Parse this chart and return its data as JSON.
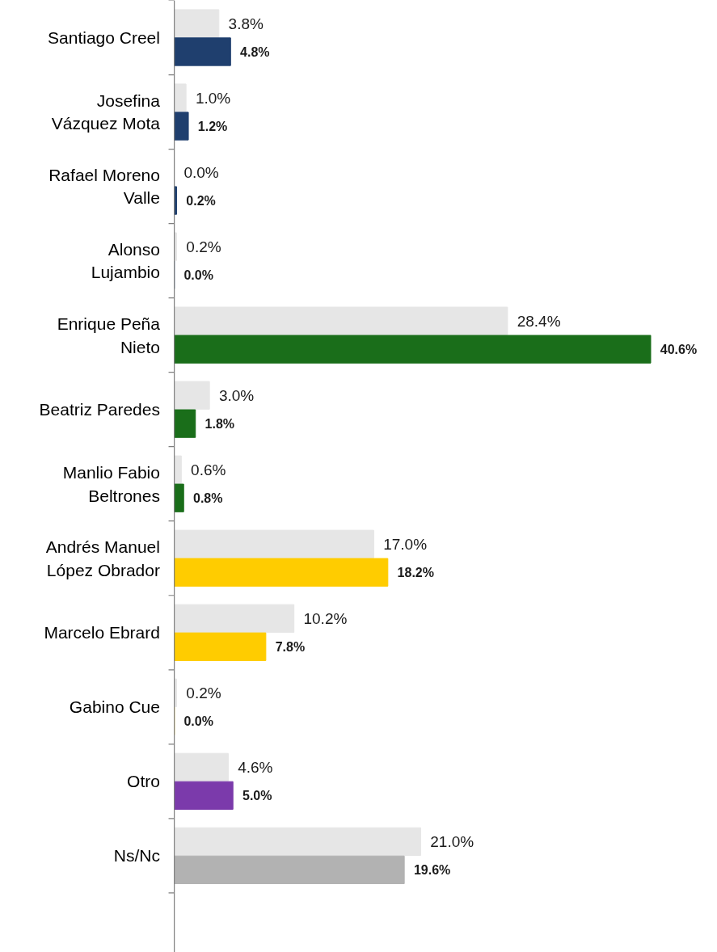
{
  "chart_data": {
    "type": "bar",
    "orientation": "horizontal",
    "categories": [
      "Santiago Creel",
      "Josefina\nVázquez Mota",
      "Rafael Moreno\nValle",
      "Alonso\nLujambio",
      "Enrique Peña\nNieto",
      "Beatriz Paredes",
      "Manlio Fabio\nBeltrones",
      "Andrés Manuel\nLópez Obrador",
      "Marcelo Ebrard",
      "Gabino Cue",
      "Otro",
      "Ns/Nc"
    ],
    "series": [
      {
        "color": "#e6e6e6",
        "values": [
          3.8,
          1.0,
          0.0,
          0.2,
          28.4,
          3.0,
          0.6,
          17.0,
          10.2,
          0.2,
          4.6,
          21.0
        ],
        "value_labels": [
          "3.8%",
          "1.0%",
          "0.0%",
          "0.2%",
          "28.4%",
          "3.0%",
          "0.6%",
          "17.0%",
          "10.2%",
          "0.2%",
          "4.6%",
          "21.0%"
        ]
      },
      {
        "colors": [
          "#1f3f6e",
          "#1f3f6e",
          "#1f3f6e",
          "#1f3f6e",
          "#1a6e1a",
          "#1a6e1a",
          "#1a6e1a",
          "#ffcc00",
          "#ffcc00",
          "#ffcc00",
          "#7b3aab",
          "#b2b2b2"
        ],
        "values": [
          4.8,
          1.2,
          0.2,
          0.0,
          40.6,
          1.8,
          0.8,
          18.2,
          7.8,
          0.0,
          5.0,
          19.6
        ],
        "value_labels": [
          "4.8%",
          "1.2%",
          "0.2%",
          "0.0%",
          "40.6%",
          "1.8%",
          "0.8%",
          "18.2%",
          "7.8%",
          "0.0%",
          "5.0%",
          "19.6%"
        ]
      }
    ]
  }
}
